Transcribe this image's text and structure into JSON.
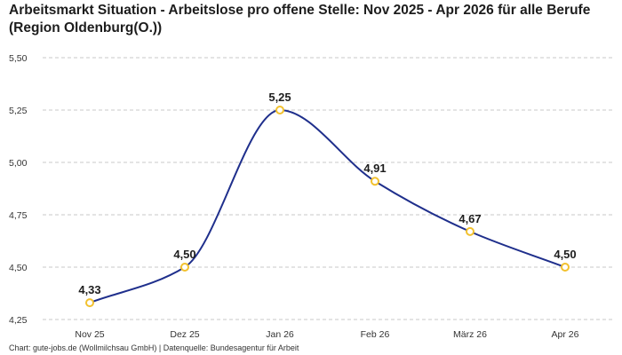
{
  "title": "Arbeitsmarkt Situation - Arbeitslose pro offene Stelle: Nov 2025 - Apr 2026 für alle Berufe (Region Oldenburg(O.))",
  "footer": "Chart: gute-jobs.de (Wollmilchsau GmbH) | Datenquelle: Bundesagentur für Arbeit",
  "colors": {
    "line": "#1f2f8c",
    "marker_stroke": "#f2c12e",
    "marker_fill": "#ffffff",
    "grid": "#c8c8c8"
  },
  "chart_data": {
    "type": "line",
    "categories": [
      "Nov 25",
      "Dez 25",
      "Jan 26",
      "Feb 26",
      "März 26",
      "Apr 26"
    ],
    "values": [
      4.33,
      4.5,
      5.25,
      4.91,
      4.67,
      4.5
    ],
    "value_labels": [
      "4,33",
      "4,50",
      "5,25",
      "4,91",
      "4,67",
      "4,50"
    ],
    "y_ticks": [
      4.25,
      4.5,
      4.75,
      5.0,
      5.25,
      5.5
    ],
    "y_tick_labels": [
      "4,25",
      "4,50",
      "4,75",
      "5,00",
      "5,25",
      "5,50"
    ],
    "ylim": [
      4.25,
      5.5
    ],
    "xlabel": "",
    "ylabel": "",
    "grid": "horizontal dashed",
    "curve": "smooth",
    "legend": "none"
  }
}
